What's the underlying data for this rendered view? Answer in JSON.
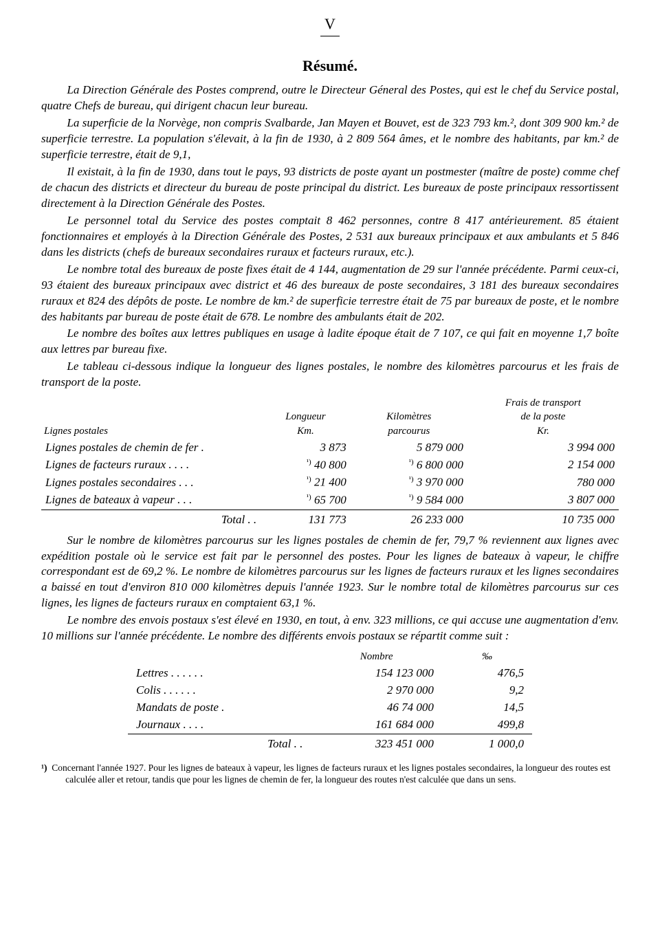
{
  "page_number": "V",
  "title": "Résumé.",
  "paragraphs": {
    "p1": "La Direction Générale des Postes comprend, outre le Directeur Géneral des Postes, qui est le chef du Service postal, quatre Chefs de bureau, qui dirigent chacun leur bureau.",
    "p2": "La superficie de la Norvège, non compris Svalbarde, Jan Mayen et Bouvet, est de 323 793 km.², dont 309 900 km.² de superficie terrestre. La population s'élevait, à la fin de 1930, à 2 809 564 âmes, et le nombre des habitants, par km.² de superficie terrestre, était de 9,1,",
    "p3": "Il existait, à la fin de 1930, dans tout le pays, 93 districts de poste ayant un postmester (maître de poste) comme chef de chacun des districts et directeur du bureau de poste principal du district. Les bureaux de poste principaux ressortissent directement à la Direction Générale des Postes.",
    "p4": "Le personnel total du Service des postes comptait 8 462 personnes, contre 8 417 antérieurement. 85 étaient fonctionnaires et employés à la Direction Générale des Postes, 2 531 aux bureaux principaux et aux ambulants et 5 846 dans les districts (chefs de bureaux secondaires ruraux et facteurs ruraux, etc.).",
    "p5": "Le nombre total des bureaux de poste fixes était de 4 144, augmentation de 29 sur l'année précédente. Parmi ceux-ci, 93 étaient des bureaux principaux avec district et 46 des bureaux de poste secondaires, 3 181 des bureaux secondaires ruraux et 824 des dépôts de poste. Le nombre de km.² de superficie terrestre était de 75 par bureaux de poste, et le nombre des habitants par bureau de poste était de 678. Le nombre des ambulants était de 202.",
    "p6": "Le nombre des boîtes aux lettres publiques en usage à ladite époque était de 7 107, ce qui fait en moyenne 1,7 boîte aux lettres par bureau fixe.",
    "p7": "Le tableau ci-dessous indique la longueur des lignes postales, le nombre des kilomètres parcourus et les frais de transport de la poste.",
    "p8": "Sur le nombre de kilomètres parcourus sur les lignes postales de chemin de fer, 79,7 % reviennent aux lignes avec expédition postale où le service est fait par le personnel des postes. Pour les lignes de bateaux à vapeur, le chiffre correspondant est de 69,2 %. Le nombre de kilomètres parcourus sur les lignes de facteurs ruraux et les lignes secondaires a baissé en tout d'environ 810 000 kilomètres depuis l'année 1923. Sur le nombre total de kilomètres parcourus sur ces lignes, les lignes de facteurs ruraux en comptaient 63,1 %.",
    "p9": "Le nombre des envois postaux s'est élevé en 1930, en tout, à env. 323 millions, ce qui accuse une augmentation d'env. 10 millions sur l'année précédente. Le nombre des différents envois postaux se répartit comme suit :"
  },
  "table1": {
    "headers": {
      "c1": "Lignes postales",
      "c2a": "Longueur",
      "c2b": "Km.",
      "c3a": "Kilomètres",
      "c3b": "parcourus",
      "c4a": "Frais de transport",
      "c4b": "de la poste",
      "c4c": "Kr."
    },
    "rows": [
      {
        "label": "Lignes postales de chemin de fer  .",
        "longueur": "3 873",
        "km": "5 879 000",
        "frais": "3 994 000",
        "note": false
      },
      {
        "label": "Lignes de facteurs ruraux  .  .  .  .",
        "longueur": "40 800",
        "km": "6 800 000",
        "frais": "2 154 000",
        "note": true
      },
      {
        "label": "Lignes postales secondaires  .  .  .",
        "longueur": "21 400",
        "km": "3 970 000",
        "frais": "780 000",
        "note": true
      },
      {
        "label": "Lignes de bateaux à vapeur   .  .  .",
        "longueur": "65 700",
        "km": "9 584 000",
        "frais": "3 807 000",
        "note": true
      }
    ],
    "total": {
      "label": "Total .  .",
      "longueur": "131 773",
      "km": "26 233 000",
      "frais": "10 735 000"
    }
  },
  "table2": {
    "headers": {
      "c2": "Nombre",
      "c3": "‰"
    },
    "rows": [
      {
        "label": "Lettres .  .  .  .  .  .",
        "nombre": "154 123 000",
        "pm": "476,5"
      },
      {
        "label": "Colis   .  .  .  .  .  .",
        "nombre": "2 970 000",
        "pm": "9,2"
      },
      {
        "label": "Mandats de poste  .",
        "nombre": "46 74 000",
        "pm": "14,5"
      },
      {
        "label": "Journaux   .  .  .  .",
        "nombre": "161 684 000",
        "pm": "499,8"
      }
    ],
    "total": {
      "label": "Total .  .",
      "nombre": "323 451 000",
      "pm": "1 000,0"
    }
  },
  "footnote": {
    "mark": "¹)",
    "text": "Concernant l'année 1927. Pour les lignes de bateaux à vapeur, les lignes de facteurs ruraux et les lignes postales secondaires, la longueur des routes est calculée aller et retour, tandis que pour les lignes de chemin de fer, la longueur des routes n'est calculée que dans un sens."
  }
}
